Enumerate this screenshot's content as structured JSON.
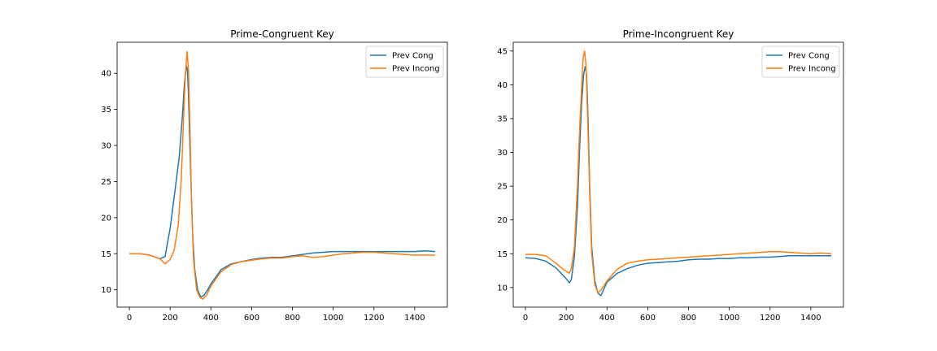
{
  "chart_data": [
    {
      "type": "line",
      "title": "Prime-Congruent Key",
      "xlabel": "",
      "ylabel": "",
      "xlim": [
        -60,
        1560
      ],
      "ylim": [
        7.6,
        44.3
      ],
      "xticks": [
        0,
        200,
        400,
        600,
        800,
        1000,
        1200,
        1400
      ],
      "yticks": [
        10,
        15,
        20,
        25,
        30,
        35,
        40
      ],
      "legend_position": "upper right",
      "grid": false,
      "series": [
        {
          "name": "Prev Cong",
          "color": "#1f77b4",
          "x": [
            0,
            50,
            100,
            150,
            175,
            200,
            225,
            245,
            260,
            270,
            280,
            285,
            290,
            300,
            310,
            320,
            335,
            350,
            365,
            380,
            400,
            450,
            500,
            550,
            600,
            650,
            700,
            750,
            800,
            850,
            900,
            950,
            1000,
            1050,
            1100,
            1150,
            1200,
            1250,
            1300,
            1350,
            1400,
            1450,
            1500
          ],
          "y": [
            15.0,
            15.0,
            14.8,
            14.3,
            14.6,
            18.5,
            24.0,
            28.5,
            34.0,
            38.5,
            41.0,
            40.5,
            37.0,
            27.0,
            18.0,
            13.0,
            10.0,
            9.0,
            9.2,
            9.8,
            10.8,
            12.8,
            13.6,
            13.9,
            14.2,
            14.4,
            14.5,
            14.5,
            14.7,
            14.9,
            15.1,
            15.2,
            15.3,
            15.3,
            15.3,
            15.3,
            15.3,
            15.3,
            15.3,
            15.3,
            15.3,
            15.4,
            15.3
          ]
        },
        {
          "name": "Prev Incong",
          "color": "#ff7f0e",
          "x": [
            0,
            50,
            100,
            150,
            175,
            200,
            220,
            240,
            255,
            265,
            275,
            283,
            290,
            297,
            305,
            315,
            330,
            345,
            360,
            380,
            400,
            450,
            500,
            550,
            600,
            650,
            700,
            750,
            800,
            850,
            900,
            950,
            1000,
            1050,
            1100,
            1150,
            1200,
            1250,
            1300,
            1350,
            1400,
            1450,
            1500
          ],
          "y": [
            15.0,
            15.0,
            14.8,
            14.3,
            13.6,
            14.2,
            15.5,
            19.0,
            25.5,
            33.0,
            40.0,
            43.0,
            40.5,
            33.0,
            22.0,
            14.0,
            10.0,
            9.0,
            8.7,
            9.3,
            10.5,
            12.5,
            13.5,
            13.9,
            14.1,
            14.3,
            14.4,
            14.4,
            14.6,
            14.7,
            14.5,
            14.6,
            14.8,
            15.0,
            15.1,
            15.2,
            15.2,
            15.1,
            15.0,
            14.9,
            14.8,
            14.8,
            14.8
          ]
        }
      ]
    },
    {
      "type": "line",
      "title": "Prime-Incongruent Key",
      "xlabel": "",
      "ylabel": "",
      "xlim": [
        -60,
        1560
      ],
      "ylim": [
        7.1,
        46.3
      ],
      "xticks": [
        0,
        200,
        400,
        600,
        800,
        1000,
        1200,
        1400
      ],
      "yticks": [
        10,
        15,
        20,
        25,
        30,
        35,
        40,
        45
      ],
      "legend_position": "upper right",
      "grid": false,
      "series": [
        {
          "name": "Prev Cong",
          "color": "#1f77b4",
          "x": [
            0,
            50,
            100,
            150,
            200,
            215,
            225,
            240,
            255,
            265,
            275,
            285,
            293,
            300,
            307,
            315,
            325,
            340,
            355,
            370,
            385,
            400,
            450,
            500,
            550,
            600,
            650,
            700,
            750,
            800,
            850,
            900,
            950,
            1000,
            1050,
            1100,
            1150,
            1200,
            1250,
            1300,
            1350,
            1400,
            1450,
            1500
          ],
          "y": [
            14.4,
            14.3,
            13.9,
            12.9,
            11.3,
            10.7,
            11.2,
            14.5,
            22.0,
            30.0,
            37.0,
            41.5,
            42.7,
            41.5,
            35.0,
            25.0,
            16.0,
            11.0,
            9.2,
            8.8,
            9.8,
            10.8,
            12.1,
            12.8,
            13.3,
            13.6,
            13.7,
            13.8,
            13.9,
            14.1,
            14.2,
            14.2,
            14.3,
            14.3,
            14.4,
            14.4,
            14.5,
            14.5,
            14.6,
            14.7,
            14.7,
            14.7,
            14.7,
            14.7
          ]
        },
        {
          "name": "Prev Incong",
          "color": "#ff7f0e",
          "x": [
            0,
            50,
            100,
            150,
            180,
            200,
            215,
            225,
            240,
            255,
            265,
            275,
            283,
            290,
            297,
            305,
            315,
            325,
            340,
            355,
            370,
            385,
            400,
            450,
            500,
            550,
            600,
            650,
            700,
            750,
            800,
            850,
            900,
            950,
            1000,
            1050,
            1100,
            1150,
            1200,
            1250,
            1300,
            1350,
            1400,
            1450,
            1500
          ],
          "y": [
            14.9,
            14.9,
            14.7,
            13.6,
            12.8,
            12.4,
            12.1,
            12.8,
            16.0,
            25.0,
            33.0,
            39.5,
            44.0,
            45.0,
            43.0,
            35.0,
            24.0,
            15.0,
            10.5,
            9.2,
            9.6,
            10.3,
            11.0,
            12.7,
            13.6,
            13.9,
            14.1,
            14.2,
            14.3,
            14.4,
            14.5,
            14.6,
            14.7,
            14.8,
            14.9,
            15.0,
            15.1,
            15.2,
            15.3,
            15.3,
            15.2,
            15.1,
            15.0,
            15.1,
            15.0
          ]
        }
      ]
    }
  ]
}
